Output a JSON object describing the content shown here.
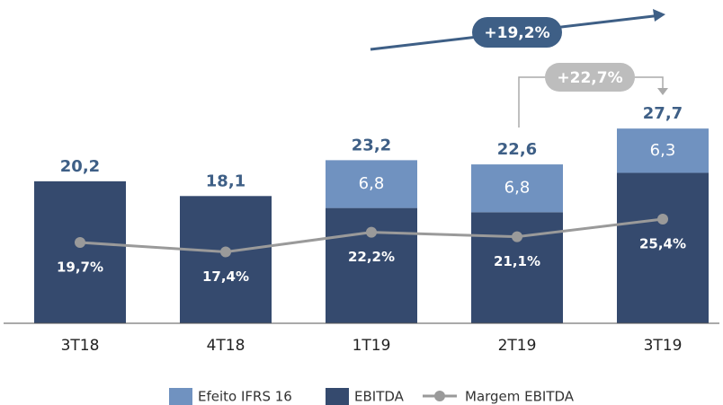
{
  "chart_data": {
    "type": "bar",
    "categories": [
      "3T18",
      "4T18",
      "1T19",
      "2T19",
      "3T19"
    ],
    "stacked": true,
    "series": [
      {
        "name": "Efeito IFRS 16",
        "color": "#7092c0",
        "values": [
          null,
          null,
          6.8,
          6.8,
          6.3
        ],
        "value_labels": [
          null,
          null,
          "6,8",
          "6,8",
          "6,3"
        ]
      },
      {
        "name": "EBITDA",
        "color": "#354a6e",
        "values": [
          20.2,
          18.1,
          16.4,
          15.8,
          21.4
        ]
      },
      {
        "name": "Margem EBITDA",
        "type": "line",
        "axis": "y2",
        "color": "#9a9a9a",
        "values": [
          19.7,
          17.4,
          22.2,
          21.1,
          25.4
        ],
        "value_labels": [
          "19,7%",
          "17,4%",
          "22,2%",
          "21,1%",
          "25,4%"
        ]
      }
    ],
    "totals": {
      "values": [
        20.2,
        18.1,
        23.2,
        22.6,
        27.7
      ],
      "value_labels": [
        "20,2",
        "18,1",
        "23,2",
        "22,6",
        "27,7"
      ]
    },
    "annotations": [
      "+19,2%",
      "+22,7%"
    ],
    "ylim": [
      0,
      35
    ],
    "y2lim": [
      0,
      60
    ]
  }
}
